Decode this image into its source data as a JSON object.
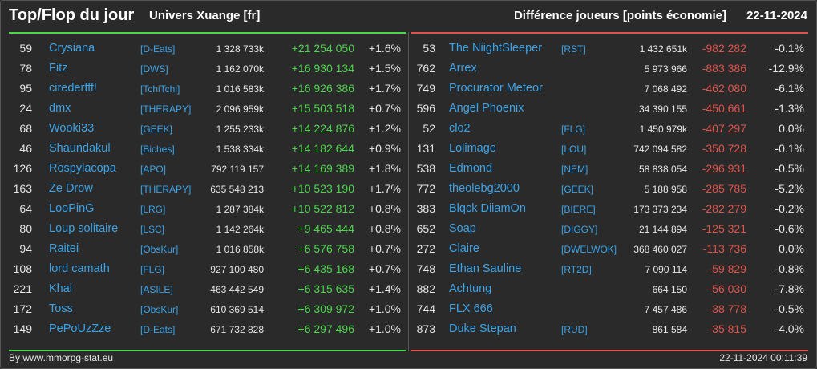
{
  "header": {
    "title": "Top/Flop du jour",
    "universe": "Univers Xuange [fr]",
    "difference_label": "Différence joueurs [points économie]",
    "date": "22-11-2024"
  },
  "colors": {
    "gain": "#4cd64c",
    "loss": "#e0524a",
    "name": "#3ba3e8"
  },
  "top": [
    {
      "rank": "59",
      "name": "Crysiana",
      "alliance": "[D-Eats]",
      "points": "1 328 733k",
      "delta": "+21 254 050",
      "percent": "+1.6%"
    },
    {
      "rank": "78",
      "name": "Fitz",
      "alliance": "[DWS]",
      "points": "1 162 070k",
      "delta": "+16 930 134",
      "percent": "+1.5%"
    },
    {
      "rank": "95",
      "name": "cirederfff!",
      "alliance": "[TchiTchi]",
      "points": "1 016 583k",
      "delta": "+16 926 386",
      "percent": "+1.7%"
    },
    {
      "rank": "24",
      "name": "dmx",
      "alliance": "[THERAPY]",
      "points": "2 096 959k",
      "delta": "+15 503 518",
      "percent": "+0.7%"
    },
    {
      "rank": "68",
      "name": "Wooki33",
      "alliance": "[GEEK]",
      "points": "1 255 233k",
      "delta": "+14 224 876",
      "percent": "+1.2%"
    },
    {
      "rank": "46",
      "name": "Shaundakul",
      "alliance": "[Biches]",
      "points": "1 538 334k",
      "delta": "+14 182 644",
      "percent": "+0.9%"
    },
    {
      "rank": "126",
      "name": "Rospylacopa",
      "alliance": "[APO]",
      "points": "792 119 157",
      "delta": "+14 169 389",
      "percent": "+1.8%"
    },
    {
      "rank": "163",
      "name": "Ze Drow",
      "alliance": "[THERAPY]",
      "points": "635 548 213",
      "delta": "+10 523 190",
      "percent": "+1.7%"
    },
    {
      "rank": "64",
      "name": "LooPinG",
      "alliance": "[LRG]",
      "points": "1 287 384k",
      "delta": "+10 522 812",
      "percent": "+0.8%"
    },
    {
      "rank": "80",
      "name": "Loup solitaire",
      "alliance": "[LSC]",
      "points": "1 142 264k",
      "delta": "+9 465 444",
      "percent": "+0.8%"
    },
    {
      "rank": "94",
      "name": "Raitei",
      "alliance": "[ObsKur]",
      "points": "1 016 858k",
      "delta": "+6 576 758",
      "percent": "+0.7%"
    },
    {
      "rank": "108",
      "name": "lord camath",
      "alliance": "[FLG]",
      "points": "927 100 480",
      "delta": "+6 435 168",
      "percent": "+0.7%"
    },
    {
      "rank": "221",
      "name": "Khal",
      "alliance": "[ASILE]",
      "points": "463 442 549",
      "delta": "+6 315 635",
      "percent": "+1.4%"
    },
    {
      "rank": "172",
      "name": "Toss",
      "alliance": "[ObsKur]",
      "points": "610 369 514",
      "delta": "+6 309 972",
      "percent": "+1.0%"
    },
    {
      "rank": "149",
      "name": "PePoUzZze",
      "alliance": "[D-Eats]",
      "points": "671 732 828",
      "delta": "+6 297 496",
      "percent": "+1.0%"
    }
  ],
  "flop": [
    {
      "rank": "53",
      "name": "The NiightSleeper",
      "alliance": "[RST]",
      "points": "1 432 651k",
      "delta": "-982 282",
      "percent": "-0.1%"
    },
    {
      "rank": "762",
      "name": "Arrex",
      "alliance": "",
      "points": "5 973 966",
      "delta": "-883 386",
      "percent": "-12.9%"
    },
    {
      "rank": "749",
      "name": "Procurator Meteor",
      "alliance": "",
      "points": "7 068 492",
      "delta": "-462 080",
      "percent": "-6.1%"
    },
    {
      "rank": "596",
      "name": "Angel Phoenix",
      "alliance": "",
      "points": "34 390 155",
      "delta": "-450 661",
      "percent": "-1.3%"
    },
    {
      "rank": "52",
      "name": "clo2",
      "alliance": "[FLG]",
      "points": "1 450 979k",
      "delta": "-407 297",
      "percent": "0.0%"
    },
    {
      "rank": "131",
      "name": "Lolimage",
      "alliance": "[LOU]",
      "points": "742 094 582",
      "delta": "-350 728",
      "percent": "-0.1%"
    },
    {
      "rank": "538",
      "name": "Edmond",
      "alliance": "[NEM]",
      "points": "58 838 054",
      "delta": "-296 931",
      "percent": "-0.5%"
    },
    {
      "rank": "772",
      "name": "theolebg2000",
      "alliance": "[GEEK]",
      "points": "5 188 958",
      "delta": "-285 785",
      "percent": "-5.2%"
    },
    {
      "rank": "383",
      "name": "Blqck DiiamOn",
      "alliance": "[BIERE]",
      "points": "173 373 234",
      "delta": "-282 279",
      "percent": "-0.2%"
    },
    {
      "rank": "652",
      "name": "Soap",
      "alliance": "[DIGGY]",
      "points": "21 144 894",
      "delta": "-125 321",
      "percent": "-0.6%"
    },
    {
      "rank": "272",
      "name": "Claire",
      "alliance": "[DWELWOK]",
      "points": "368 460 027",
      "delta": "-113 736",
      "percent": "0.0%"
    },
    {
      "rank": "748",
      "name": "Ethan Sauline",
      "alliance": "[RT2D]",
      "points": "7 090 114",
      "delta": "-59 829",
      "percent": "-0.8%"
    },
    {
      "rank": "882",
      "name": "Achtung",
      "alliance": "",
      "points": "664 150",
      "delta": "-56 030",
      "percent": "-7.8%"
    },
    {
      "rank": "744",
      "name": "FLX 666",
      "alliance": "",
      "points": "7 457 486",
      "delta": "-38 778",
      "percent": "-0.5%"
    },
    {
      "rank": "873",
      "name": "Duke Stepan",
      "alliance": "[RUD]",
      "points": "861 584",
      "delta": "-35 815",
      "percent": "-4.0%"
    }
  ],
  "footer": {
    "credit": "By www.mmorpg-stat.eu",
    "timestamp": "22-11-2024 00:11:39"
  }
}
